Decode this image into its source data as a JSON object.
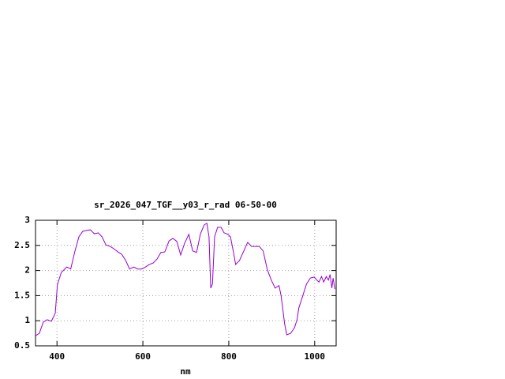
{
  "chart_data": {
    "type": "line",
    "title": "sr_2026_047_TGF__y03_r_rad 06-50-00",
    "x_label": "nm",
    "x": [
      350,
      359,
      368,
      377,
      387,
      396,
      401,
      410,
      423,
      432,
      441,
      451,
      460,
      469,
      478,
      487,
      496,
      505,
      514,
      524,
      533,
      542,
      551,
      560,
      569,
      579,
      588,
      597,
      606,
      615,
      624,
      633,
      642,
      651,
      661,
      670,
      679,
      688,
      697,
      707,
      716,
      725,
      734,
      743,
      749,
      754,
      758,
      762,
      767,
      774,
      782,
      789,
      798,
      804,
      811,
      816,
      825,
      835,
      844,
      853,
      862,
      871,
      880,
      890,
      899,
      908,
      917,
      922,
      930,
      935,
      944,
      953,
      959,
      963,
      972,
      981,
      990,
      999,
      1005,
      1010,
      1016,
      1021,
      1027,
      1032,
      1036,
      1040,
      1043,
      1047
    ],
    "values": [
      0.7,
      0.75,
      0.97,
      1.02,
      0.99,
      1.15,
      1.72,
      1.96,
      2.07,
      2.03,
      2.36,
      2.67,
      2.78,
      2.8,
      2.81,
      2.73,
      2.75,
      2.67,
      2.51,
      2.48,
      2.43,
      2.37,
      2.32,
      2.2,
      2.03,
      2.07,
      2.03,
      2.03,
      2.07,
      2.12,
      2.15,
      2.23,
      2.36,
      2.37,
      2.59,
      2.64,
      2.58,
      2.31,
      2.54,
      2.72,
      2.39,
      2.36,
      2.73,
      2.91,
      2.94,
      2.67,
      1.65,
      1.73,
      2.67,
      2.86,
      2.86,
      2.75,
      2.72,
      2.67,
      2.36,
      2.12,
      2.2,
      2.39,
      2.56,
      2.48,
      2.48,
      2.48,
      2.39,
      2.01,
      1.81,
      1.65,
      1.7,
      1.49,
      0.94,
      0.72,
      0.75,
      0.86,
      1.02,
      1.25,
      1.49,
      1.73,
      1.85,
      1.87,
      1.81,
      1.77,
      1.88,
      1.77,
      1.88,
      1.81,
      1.92,
      1.65,
      1.85,
      1.63
    ],
    "color": "#9400d3",
    "xlim": [
      350,
      1050
    ],
    "xticks": [
      400,
      600,
      800,
      1000
    ],
    "ylim": [
      0.5,
      3
    ],
    "yticks": [
      0.5,
      1,
      1.5,
      2,
      2.5,
      3
    ],
    "grid": true
  }
}
